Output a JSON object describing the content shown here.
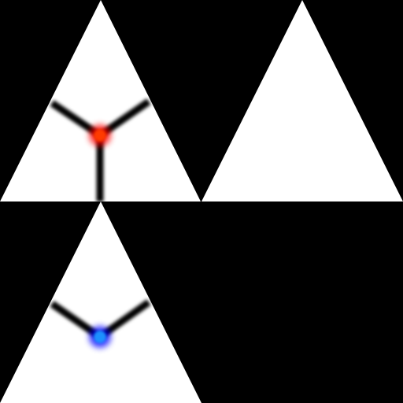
{
  "colors": {
    "background": "#000000",
    "triangle_fill": "#ffffff",
    "spoke_stroke": "#000000",
    "red_node_core": "#ff3b00",
    "red_node_glow": "#ff0000",
    "blue_node_core": "#1e90ff",
    "blue_node_glow": "#0000ff"
  },
  "tiles": [
    {
      "name": "tile-top-left",
      "triangle": true,
      "node": "red",
      "spokes": 3
    },
    {
      "name": "tile-top-right",
      "triangle": true,
      "node": "none",
      "spokes": 0
    },
    {
      "name": "tile-bottom-left",
      "triangle": true,
      "node": "blue",
      "spokes": 2
    },
    {
      "name": "tile-bottom-right",
      "triangle": false,
      "node": "none",
      "spokes": 0
    }
  ]
}
